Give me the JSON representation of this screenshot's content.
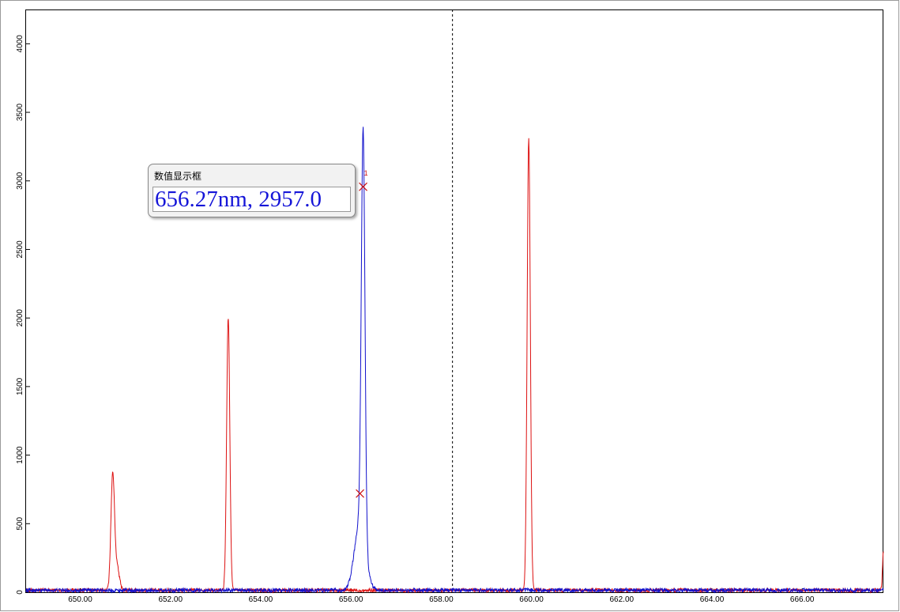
{
  "chart_data": {
    "type": "line",
    "title": "",
    "xlabel": "",
    "ylabel": "",
    "xlim": [
      648.8,
      667.8
    ],
    "ylim": [
      0,
      4250
    ],
    "x_ticks": [
      "650.00",
      "652.00",
      "654.00",
      "656.00",
      "658.00",
      "660.00",
      "662.00",
      "664.00",
      "666.00"
    ],
    "y_ticks": [
      "0",
      "500",
      "1000",
      "1500",
      "2000",
      "2500",
      "3000",
      "3500",
      "4000"
    ],
    "grid": false,
    "legend": "none",
    "cursor_x": 658.25,
    "series": [
      {
        "color": "#dd1111",
        "peaks": [
          {
            "x": 650.72,
            "y": 840,
            "width": 0.04
          },
          {
            "x": 650.82,
            "y": 160,
            "width": 0.05
          },
          {
            "x": 653.28,
            "y": 1990,
            "width": 0.035
          },
          {
            "x": 659.94,
            "y": 3310,
            "width": 0.035
          },
          {
            "x": 667.8,
            "y": 280,
            "width": 0.02
          }
        ],
        "baseline": 20
      },
      {
        "color": "#1111cc",
        "peaks": [
          {
            "x": 656.27,
            "y": 2957,
            "width": 0.04
          },
          {
            "x": 656.2,
            "y": 500,
            "width": 0.12
          }
        ],
        "baseline": 20
      }
    ],
    "markers": [
      {
        "x": 656.27,
        "y": 2957,
        "label": "1"
      },
      {
        "x": 656.2,
        "y": 720,
        "label": ""
      }
    ]
  },
  "readout": {
    "title": "数值显示框",
    "value": "656.27nm, 2957.0"
  }
}
